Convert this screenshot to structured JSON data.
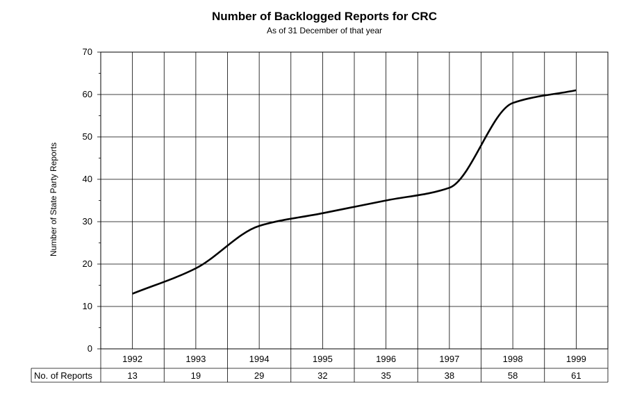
{
  "chart_data": {
    "type": "line",
    "title": "Number of Backlogged Reports for CRC",
    "subtitle": "As of 31 December of that  year",
    "xlabel": "",
    "ylabel": "Number of State Party Reports",
    "ylim": [
      0,
      70
    ],
    "yticks": [
      "0",
      "10",
      "20",
      "30",
      "40",
      "50",
      "60",
      "70"
    ],
    "grid": true,
    "categories": [
      "1992",
      "1993",
      "1994",
      "1995",
      "1996",
      "1997",
      "1998",
      "1999"
    ],
    "values": [
      13,
      19,
      29,
      32,
      35,
      38,
      58,
      61
    ],
    "table": {
      "row_label": "No. of Reports",
      "values": [
        "13",
        "19",
        "29",
        "32",
        "35",
        "38",
        "58",
        "61"
      ]
    }
  }
}
